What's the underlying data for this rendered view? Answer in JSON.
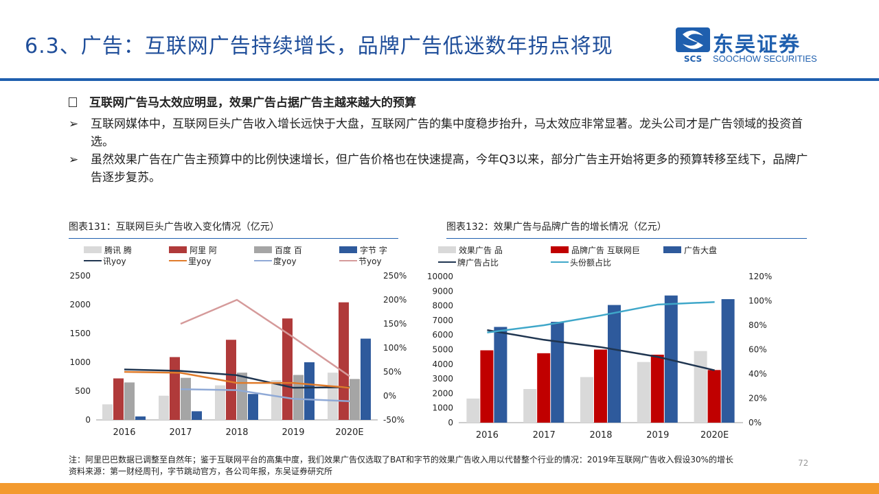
{
  "header": {
    "title": "6.3、广告：互联网广告持续增长，品牌广告低迷数年拐点将现",
    "logo_cn": "东吴证券",
    "logo_en": "SOOCHOW SECURITIES",
    "logo_mark": "SCS"
  },
  "body": {
    "headline": "互联网广告马太效应明显，效果广告占据广告主越来越大的预算",
    "bullets": [
      "互联网媒体中，互联网巨头广告收入增长远快于大盘，互联网广告的集中度稳步抬升，马太效应非常显著。龙头公司才是广告领域的投资首选。",
      "虽然效果广告在广告主预算中的比例快速增长，但广告价格也在快速提高，今年Q3以来，部分广告主开始将更多的预算转移至线下，品牌广告逐步复苏。"
    ],
    "bullet_glyph": "➢"
  },
  "colors": {
    "title": "#1f4e9a",
    "accent": "#1f5fae",
    "footer": "#f39a2e",
    "tencent": "#d9d9d9",
    "alibaba": "#b03a3a",
    "baidu": "#a5a5a5",
    "bytedance": "#2e5a9c"
  },
  "chart_data": [
    {
      "type": "bar",
      "title": "图表131：互联网巨头广告收入变化情况（亿元）",
      "categories": [
        "2016",
        "2017",
        "2018",
        "2019",
        "2020E"
      ],
      "ylim": [
        0,
        2500
      ],
      "yticks": [
        "0",
        "500",
        "1000",
        "1500",
        "2000",
        "2500"
      ],
      "y2lim": [
        -50,
        250
      ],
      "y2ticks": [
        "-50%",
        "0%",
        "50%",
        "100%",
        "150%",
        "200%",
        "250%"
      ],
      "series": [
        {
          "name": "腾讯 腾",
          "kind": "bar",
          "color": "#d9d9d9",
          "values": [
            270,
            420,
            600,
            690,
            820
          ]
        },
        {
          "name": "阿里 阿",
          "kind": "bar",
          "color": "#b03a3a",
          "values": [
            720,
            1090,
            1390,
            1760,
            2040
          ]
        },
        {
          "name": "百度 百",
          "kind": "bar",
          "color": "#a5a5a5",
          "values": [
            650,
            730,
            820,
            780,
            710
          ]
        },
        {
          "name": "字节 字",
          "kind": "bar",
          "color": "#2e5a9c",
          "values": [
            60,
            150,
            450,
            1000,
            1410
          ]
        },
        {
          "name": "讯yoy",
          "kind": "line",
          "color": "#1f3550",
          "values": [
            55,
            52,
            43,
            17,
            18
          ]
        },
        {
          "name": "里yoy",
          "kind": "line",
          "color": "#e07b2a",
          "values": [
            50,
            48,
            27,
            27,
            17
          ]
        },
        {
          "name": "度yoy",
          "kind": "line",
          "color": "#8fa9d6",
          "values": [
            null,
            14,
            12,
            -6,
            -11
          ]
        },
        {
          "name": "节yoy",
          "kind": "line",
          "color": "#d59a9a",
          "values": [
            null,
            150,
            200,
            122,
            41
          ]
        }
      ],
      "legend": "top"
    },
    {
      "type": "bar",
      "title": "图表132：效果广告与品牌广告的增长情况（亿元）",
      "categories": [
        "2016",
        "2017",
        "2018",
        "2019",
        "2020E"
      ],
      "ylim": [
        0,
        10000
      ],
      "yticks": [
        "0",
        "1000",
        "2000",
        "3000",
        "4000",
        "5000",
        "6000",
        "7000",
        "8000",
        "9000",
        "10000"
      ],
      "y2lim": [
        0,
        120
      ],
      "y2ticks": [
        "0%",
        "20%",
        "40%",
        "60%",
        "80%",
        "100%",
        "120%"
      ],
      "series": [
        {
          "name": "效果广告 品",
          "kind": "bar",
          "color": "#d9d9d9",
          "values": [
            1650,
            2300,
            3120,
            4150,
            4900
          ]
        },
        {
          "name": "品牌广告 互联网巨",
          "kind": "bar",
          "color": "#c00000",
          "values": [
            4950,
            4750,
            5000,
            4650,
            3600
          ]
        },
        {
          "name": "广告大盘",
          "kind": "bar",
          "color": "#2e5a9c",
          "values": [
            6550,
            6900,
            8050,
            8700,
            8450
          ]
        },
        {
          "name": "牌广告占比",
          "kind": "line",
          "color": "#1f3550",
          "values": [
            76,
            68,
            62,
            54,
            43
          ]
        },
        {
          "name": "头份额占比",
          "kind": "line",
          "color": "#3fa7c9",
          "values": [
            74,
            80,
            88,
            97,
            99
          ]
        }
      ],
      "legend": "top"
    }
  ],
  "footer": {
    "note": "注：阿里巴巴数据已调整至自然年；鉴于互联网平台的高集中度，我们效果广告仅选取了BAT和字节的效果广告收入用以代替整个行业的情况：2019年互联网广告收入假设30%的增长",
    "source": "资料来源：第一财经周刊，字节跳动官方，各公司年报，东吴证券研究所",
    "page": "72"
  }
}
